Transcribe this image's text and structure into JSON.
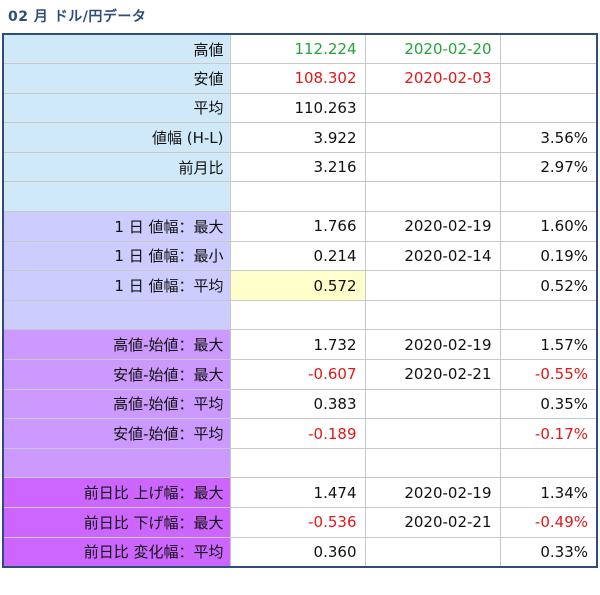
{
  "title": "02 月 ドル/円データ",
  "rows": [
    {
      "label": "高値",
      "value": "112.224",
      "date": "2020-02-20",
      "pct": ""
    },
    {
      "label": "安値",
      "value": "108.302",
      "date": "2020-02-03",
      "pct": ""
    },
    {
      "label": "平均",
      "value": "110.263",
      "date": "",
      "pct": ""
    },
    {
      "label": "値幅 (H-L)",
      "value": "3.922",
      "date": "",
      "pct": "3.56%"
    },
    {
      "label": "前月比",
      "value": "3.216",
      "date": "",
      "pct": "2.97%"
    },
    {
      "label": "",
      "value": "",
      "date": "",
      "pct": ""
    },
    {
      "label": "1 日 値幅：最大",
      "value": "1.766",
      "date": "2020-02-19",
      "pct": "1.60%"
    },
    {
      "label": "1 日 値幅：最小",
      "value": "0.214",
      "date": "2020-02-14",
      "pct": "0.19%"
    },
    {
      "label": "1 日 値幅：平均",
      "value": "0.572",
      "date": "",
      "pct": "0.52%"
    },
    {
      "label": "",
      "value": "",
      "date": "",
      "pct": ""
    },
    {
      "label": "高値-始値：最大",
      "value": "1.732",
      "date": "2020-02-19",
      "pct": "1.57%"
    },
    {
      "label": "安値-始値：最大",
      "value": "-0.607",
      "date": "2020-02-21",
      "pct": "-0.55%"
    },
    {
      "label": "高値-始値：平均",
      "value": "0.383",
      "date": "",
      "pct": "0.35%"
    },
    {
      "label": "安値-始値：平均",
      "value": "-0.189",
      "date": "",
      "pct": "-0.17%"
    },
    {
      "label": "",
      "value": "",
      "date": "",
      "pct": ""
    },
    {
      "label": "前日比 上げ幅：最大",
      "value": "1.474",
      "date": "2020-02-19",
      "pct": "1.34%"
    },
    {
      "label": "前日比 下げ幅：最大",
      "value": "-0.536",
      "date": "2020-02-21",
      "pct": "-0.49%"
    },
    {
      "label": "前日比 変化幅：平均",
      "value": "0.360",
      "date": "",
      "pct": "0.33%"
    }
  ],
  "colors": {
    "title": "#2f4d7a",
    "section_blue": "#cfe9f8",
    "section_lavender": "#ccccff",
    "section_violet": "#cc99ff",
    "section_magenta": "#cc66ff",
    "high": "#22a33b",
    "low_negative": "#e01818",
    "highlight": "#ffffcc"
  }
}
